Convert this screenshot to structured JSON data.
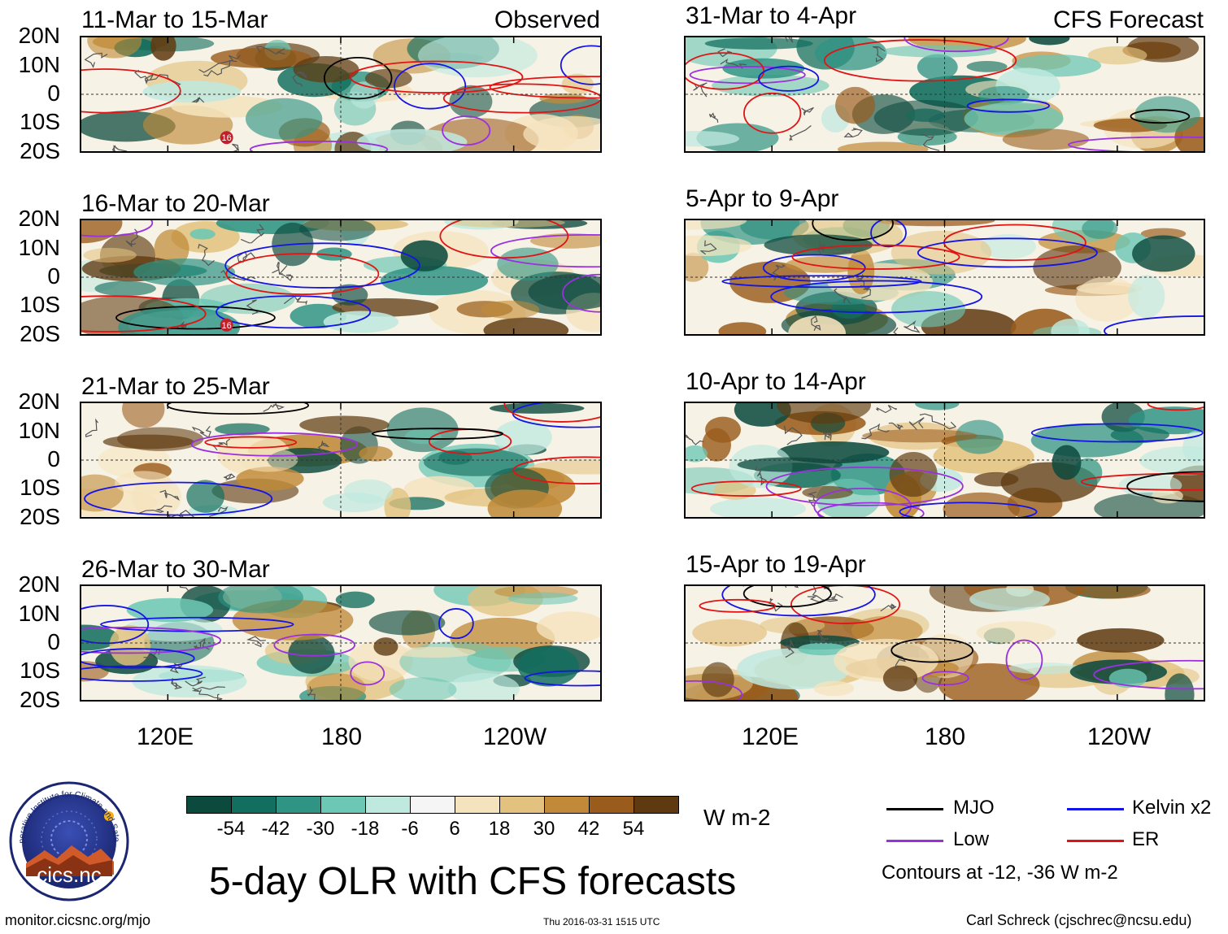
{
  "title": "5-day OLR with CFS forecasts",
  "units": "W m-2",
  "left_header_tag": "Observed",
  "right_header_tag": "CFS Forecast",
  "logo": {
    "text": "cics.nc",
    "ring_text": "Cooperative Institute for Climate and Satellites"
  },
  "footer": {
    "url": "monitor.cicsnc.org/mjo",
    "timestamp": "Thu 2016-03-31 1515 UTC",
    "author": "Carl Schreck (cjschrec@ncsu.edu)"
  },
  "legend": {
    "items": [
      {
        "label": "MJO",
        "color": "#000000"
      },
      {
        "label": "Kelvin x2",
        "color": "#1414e6"
      },
      {
        "label": "Low",
        "color": "#9b30e0"
      },
      {
        "label": "ER",
        "color": "#e01414"
      }
    ],
    "note": "Contours at -12, -36 W m-2"
  },
  "chart_data": {
    "type": "heatmap",
    "variable": "OLR anomaly (5-day mean)",
    "units": "W m-2",
    "colorbar": {
      "ticks": [
        "-54",
        "-42",
        "-30",
        "-18",
        "-6",
        "6",
        "18",
        "30",
        "42",
        "54"
      ],
      "colors": [
        "#0d4a3e",
        "#126e5e",
        "#2f9484",
        "#6cc7b4",
        "#bfe9df",
        "#f5f5f5",
        "#f5e3bd",
        "#e2c27e",
        "#c08a38",
        "#9a5c1c",
        "#5f3a10"
      ]
    },
    "lat_labels": [
      "20N",
      "10N",
      "0",
      "10S",
      "20S"
    ],
    "lat_range": [
      -20,
      20
    ],
    "lon_labels": [
      "120E",
      "180",
      "120W"
    ],
    "lon_range": [
      90,
      270
    ],
    "panels": [
      {
        "id": "p1",
        "title": "11-Mar to 15-Mar",
        "source": "Observed",
        "marker": "16"
      },
      {
        "id": "p2",
        "title": "16-Mar to 20-Mar",
        "source": "Observed",
        "marker": "16"
      },
      {
        "id": "p3",
        "title": "21-Mar to 25-Mar",
        "source": "Observed"
      },
      {
        "id": "p4",
        "title": "26-Mar to 30-Mar",
        "source": "Observed"
      },
      {
        "id": "p5",
        "title": "31-Mar to 4-Apr",
        "source": "CFS Forecast"
      },
      {
        "id": "p6",
        "title": "5-Apr to 9-Apr",
        "source": "CFS Forecast"
      },
      {
        "id": "p7",
        "title": "10-Apr to 14-Apr",
        "source": "CFS Forecast"
      },
      {
        "id": "p8",
        "title": "15-Apr to 19-Apr",
        "source": "CFS Forecast"
      }
    ]
  }
}
